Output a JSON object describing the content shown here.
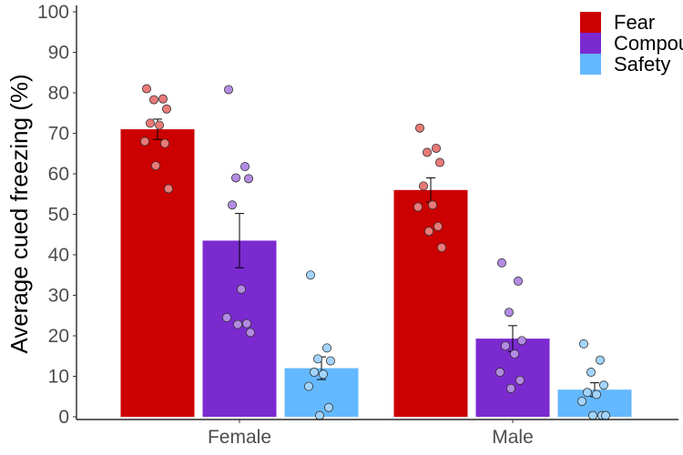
{
  "chart_data": {
    "type": "bar",
    "title": "",
    "xlabel": "",
    "ylabel": "Average cued freezing (%)",
    "ylim": [
      0,
      100
    ],
    "yticks": [
      0,
      10,
      20,
      30,
      40,
      50,
      60,
      70,
      80,
      90,
      100
    ],
    "grid": false,
    "legend_position": "top-right",
    "categories": [
      "Female",
      "Male"
    ],
    "series": [
      {
        "name": "Fear",
        "color": "#cc0000",
        "point_color": "#e87a78",
        "values": [
          71,
          56
        ],
        "error": [
          2.5,
          3
        ],
        "points": [
          [
            81,
            78.5,
            78.3,
            76,
            72.5,
            72,
            68,
            67.5,
            62,
            56.3
          ],
          [
            71.3,
            66.3,
            65.3,
            62.8,
            57,
            52.3,
            51.8,
            47,
            45.8,
            41.8
          ]
        ]
      },
      {
        "name": "Compound",
        "color": "#7b2ad0",
        "point_color": "#b38be3",
        "values": [
          43.5,
          19.3
        ],
        "error": [
          6.7,
          3.2
        ],
        "points": [
          [
            80.8,
            61.8,
            59,
            58.8,
            52.3,
            31.5,
            24.5,
            23,
            22.8,
            20.8
          ],
          [
            38,
            33.5,
            25.8,
            18.8,
            17.5,
            15.5,
            11,
            9,
            7
          ]
        ]
      },
      {
        "name": "Safety",
        "color": "#63b8ff",
        "point_color": "#a3d4ff",
        "values": [
          12,
          6.7
        ],
        "error": [
          2.8,
          1.7
        ],
        "points": [
          [
            35,
            17,
            14.3,
            13.8,
            11,
            10.5,
            7.5,
            2.3,
            0.3
          ],
          [
            18,
            14,
            11,
            7.8,
            6,
            5.5,
            3.8,
            0.3,
            0.3,
            0.3
          ]
        ]
      }
    ]
  }
}
